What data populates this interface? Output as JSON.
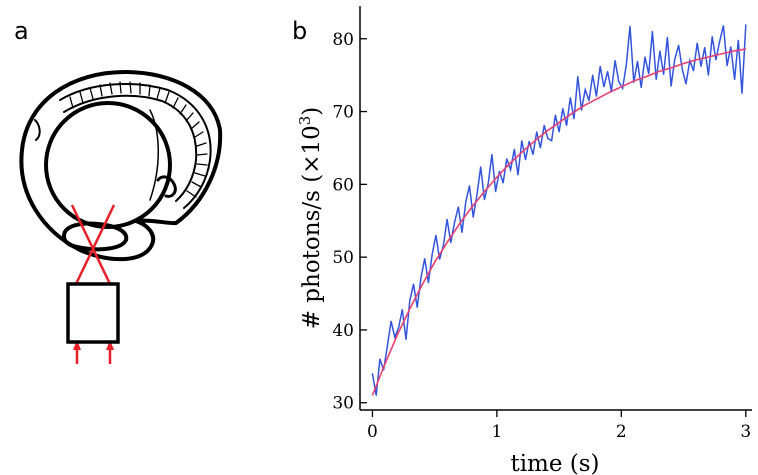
{
  "panels": {
    "a_label": "a",
    "b_label": "b"
  },
  "colors": {
    "measured": "#3355dd",
    "fit": "#e83f6f",
    "beam": "#e8202a",
    "ink": "#000000"
  },
  "chart_data": {
    "type": "line",
    "xlabel": "time (s)",
    "ylabel_main": "# photons/s (×10",
    "ylabel_sup": "3",
    "ylabel_end": ")",
    "xlim": [
      -0.1,
      3.05
    ],
    "ylim": [
      29,
      84.5
    ],
    "xticks": [
      0,
      1,
      2,
      3
    ],
    "yticks": [
      30,
      40,
      50,
      60,
      70,
      80
    ],
    "series": [
      {
        "style": "noisy-measured",
        "x": [
          0.0,
          0.03,
          0.06,
          0.09,
          0.12,
          0.15,
          0.18,
          0.21,
          0.24,
          0.27,
          0.3,
          0.33,
          0.36,
          0.39,
          0.42,
          0.45,
          0.48,
          0.51,
          0.54,
          0.57,
          0.6,
          0.63,
          0.66,
          0.69,
          0.72,
          0.75,
          0.78,
          0.81,
          0.84,
          0.87,
          0.9,
          0.93,
          0.96,
          0.99,
          1.02,
          1.05,
          1.08,
          1.11,
          1.14,
          1.17,
          1.2,
          1.23,
          1.26,
          1.29,
          1.32,
          1.35,
          1.38,
          1.41,
          1.44,
          1.47,
          1.5,
          1.53,
          1.56,
          1.59,
          1.62,
          1.65,
          1.68,
          1.71,
          1.74,
          1.77,
          1.8,
          1.83,
          1.86,
          1.89,
          1.92,
          1.95,
          1.98,
          2.01,
          2.04,
          2.07,
          2.1,
          2.13,
          2.16,
          2.19,
          2.22,
          2.25,
          2.28,
          2.31,
          2.34,
          2.37,
          2.4,
          2.43,
          2.46,
          2.49,
          2.52,
          2.55,
          2.58,
          2.61,
          2.64,
          2.67,
          2.7,
          2.73,
          2.76,
          2.79,
          2.82,
          2.85,
          2.88,
          2.91,
          2.94,
          2.97,
          3.0
        ],
        "y": [
          34.0,
          31.0,
          36.0,
          34.5,
          37.8,
          41.2,
          39.0,
          40.3,
          42.8,
          38.7,
          44.0,
          46.3,
          43.1,
          47.2,
          49.8,
          46.5,
          50.4,
          53.0,
          49.7,
          51.6,
          55.2,
          52.0,
          54.8,
          56.9,
          53.4,
          57.6,
          59.8,
          55.5,
          58.6,
          62.4,
          57.9,
          60.1,
          64.1,
          59.0,
          61.8,
          60.2,
          63.5,
          62.0,
          64.8,
          61.3,
          66.0,
          63.4,
          65.9,
          64.1,
          67.2,
          65.0,
          68.1,
          66.3,
          66.0,
          69.5,
          67.2,
          70.4,
          68.1,
          71.9,
          69.0,
          74.8,
          70.2,
          73.0,
          71.5,
          75.0,
          72.1,
          76.2,
          73.4,
          75.5,
          72.8,
          77.0,
          74.1,
          73.2,
          76.4,
          81.7,
          74.0,
          76.9,
          73.3,
          77.5,
          75.2,
          81.0,
          74.4,
          78.3,
          75.1,
          80.2,
          73.5,
          77.2,
          79.1,
          75.8,
          73.8,
          77.0,
          75.6,
          79.4,
          76.2,
          78.8,
          75.0,
          80.3,
          77.1,
          79.6,
          81.8,
          76.3,
          78.9,
          74.4,
          79.8,
          72.5,
          81.9
        ]
      },
      {
        "style": "exponential-fit",
        "x": [
          0.0,
          0.1,
          0.2,
          0.3,
          0.4,
          0.5,
          0.6,
          0.7,
          0.8,
          0.9,
          1.0,
          1.1,
          1.2,
          1.3,
          1.4,
          1.5,
          1.6,
          1.7,
          1.8,
          1.9,
          2.0,
          2.1,
          2.2,
          2.3,
          2.4,
          2.5,
          2.6,
          2.7,
          2.8,
          2.9,
          3.0
        ],
        "y": [
          31.0,
          35.3,
          39.3,
          42.9,
          46.2,
          49.3,
          52.0,
          54.6,
          56.9,
          59.0,
          61.0,
          62.8,
          64.4,
          65.9,
          67.3,
          68.5,
          69.7,
          70.8,
          71.7,
          72.6,
          73.4,
          74.2,
          74.8,
          75.5,
          76.0,
          76.6,
          77.1,
          77.5,
          77.9,
          78.3,
          78.6
        ]
      }
    ]
  }
}
